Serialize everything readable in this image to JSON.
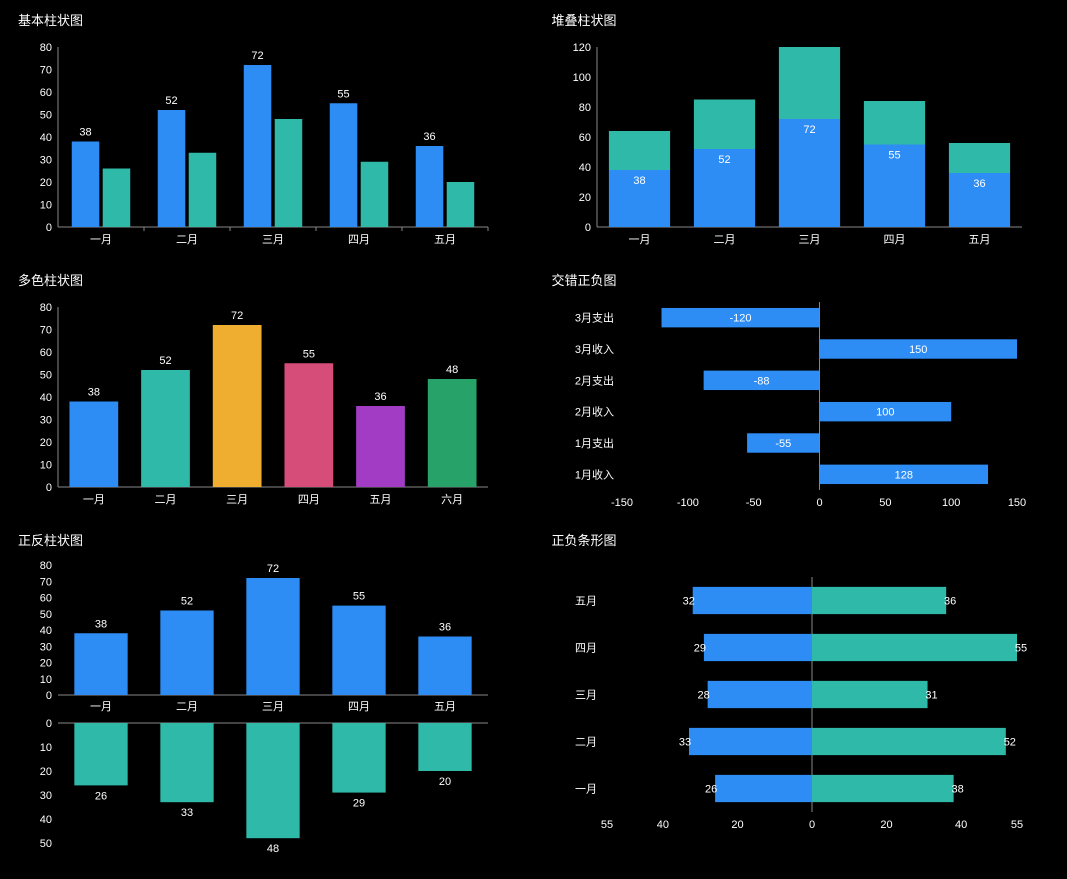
{
  "colors": {
    "blue": "#2d8df5",
    "teal": "#2fb9a8",
    "palette6": [
      "#2d8df5",
      "#2fb9a8",
      "#efae2f",
      "#d74d79",
      "#a33cc4",
      "#27a36a"
    ],
    "axis": "#888888",
    "text": "#ffffff",
    "bg": "#000000"
  },
  "charts": {
    "basic": {
      "title": "基本柱状图",
      "type": "grouped-bar",
      "categories": [
        "一月",
        "二月",
        "三月",
        "四月",
        "五月"
      ],
      "series": [
        {
          "color_key": "blue",
          "values": [
            38,
            52,
            72,
            55,
            36
          ],
          "show_label": true
        },
        {
          "color_key": "teal",
          "values": [
            26,
            33,
            48,
            29,
            20
          ],
          "show_label": false
        }
      ],
      "y": {
        "min": 0,
        "max": 80,
        "step": 10
      },
      "label_fontsize": 11
    },
    "stacked": {
      "title": "堆叠柱状图",
      "type": "stacked-bar",
      "categories": [
        "一月",
        "二月",
        "三月",
        "四月",
        "五月"
      ],
      "series": [
        {
          "color_key": "blue",
          "values": [
            38,
            52,
            72,
            55,
            36
          ],
          "label_in_bar": true
        },
        {
          "color_key": "teal",
          "values": [
            26,
            33,
            48,
            29,
            20
          ],
          "label_in_bar": false
        }
      ],
      "y": {
        "min": 0,
        "max": 120,
        "step": 20
      },
      "label_fontsize": 11
    },
    "multicolor": {
      "title": "多色柱状图",
      "type": "bar",
      "categories": [
        "一月",
        "二月",
        "三月",
        "四月",
        "五月",
        "六月"
      ],
      "values": [
        38,
        52,
        72,
        55,
        36,
        48
      ],
      "colors_key": "palette6",
      "y": {
        "min": 0,
        "max": 80,
        "step": 10
      },
      "label_fontsize": 11
    },
    "interleaved": {
      "title": "交错正负图",
      "type": "hbar-single",
      "categories": [
        "3月支出",
        "3月收入",
        "2月支出",
        "2月收入",
        "1月支出",
        "1月收入"
      ],
      "values": [
        -120,
        150,
        -88,
        100,
        -55,
        128
      ],
      "color_key": "blue",
      "x": {
        "min": -150,
        "max": 150,
        "step": 50
      },
      "label_fontsize": 11
    },
    "posneg_v": {
      "title": "正反柱状图",
      "type": "mirror-vbar",
      "categories": [
        "一月",
        "二月",
        "三月",
        "四月",
        "五月"
      ],
      "top": {
        "color_key": "blue",
        "values": [
          38,
          52,
          72,
          55,
          36
        ],
        "y": {
          "min": 0,
          "max": 80,
          "step": 10
        }
      },
      "bottom": {
        "color_key": "teal",
        "values": [
          26,
          33,
          48,
          29,
          20
        ],
        "y": {
          "min": 0,
          "max": 50,
          "step": 10
        }
      },
      "label_fontsize": 11
    },
    "posneg_h": {
      "title": "正负条形图",
      "type": "mirror-hbar",
      "categories": [
        "五月",
        "四月",
        "三月",
        "二月",
        "一月"
      ],
      "left": {
        "color_key": "blue",
        "values": [
          32,
          29,
          28,
          33,
          26
        ]
      },
      "right": {
        "color_key": "teal",
        "values": [
          36,
          55,
          31,
          52,
          38
        ]
      },
      "x_ticks": [
        55,
        40,
        20,
        0,
        20,
        40,
        55
      ],
      "x": {
        "min": -55,
        "max": 55
      },
      "label_fontsize": 11
    }
  }
}
